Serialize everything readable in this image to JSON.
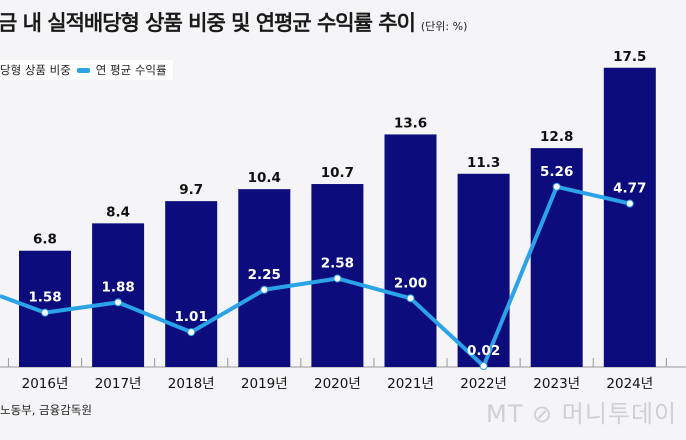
{
  "chart_data": {
    "type": "bar+line",
    "title": "금 내 실적배당형 상품 비중 및 연평균 수익률 추이",
    "unit": "(단위: %)",
    "categories": [
      "2016년",
      "2017년",
      "2018년",
      "2019년",
      "2020년",
      "2021년",
      "2022년",
      "2023년",
      "2024년"
    ],
    "series": [
      {
        "name": "당형 상품 비중",
        "type": "bar",
        "color": "#0c0c7c",
        "values": [
          6.8,
          8.4,
          9.7,
          10.4,
          10.7,
          13.6,
          11.3,
          12.8,
          17.5
        ],
        "labels": [
          "6.8",
          "8.4",
          "9.7",
          "10.4",
          "10.7",
          "13.6",
          "11.3",
          "12.8",
          "17.5"
        ]
      },
      {
        "name": "연 평균 수익률",
        "type": "line",
        "color": "#2aa3e8",
        "values": [
          1.58,
          1.88,
          1.01,
          2.25,
          2.58,
          2.0,
          0.02,
          5.26,
          4.77
        ],
        "labels": [
          "1.58",
          "1.88",
          "1.01",
          "2.25",
          "2.58",
          "2.00",
          "0.02",
          "5.26",
          "4.77"
        ]
      }
    ],
    "legend": "top-left",
    "grid": false
  },
  "source": "노동부, 금융감독원",
  "watermark": "MT 머니투데이"
}
